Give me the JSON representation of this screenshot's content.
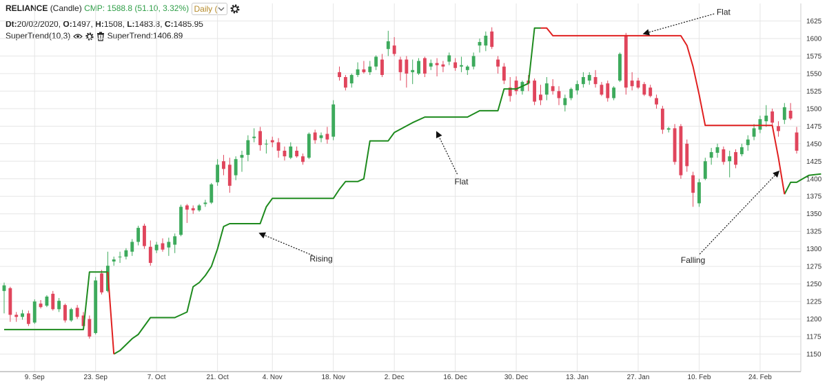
{
  "header": {
    "symbol": "RELIANCE",
    "chart_kind": "(Candle)",
    "cmp": "CMP: 1588.8 (51.10, 3.32%)",
    "interval": "Daily (",
    "dt_label": "Dt:",
    "dt_value": "20/02/2020,",
    "o_label": "O:",
    "o_value": "1497,",
    "h_label": "H:",
    "h_value": "1508,",
    "l_label": "L:",
    "l_value": "1483.8,",
    "c_label": "C:",
    "c_value": "1485.95",
    "indicator_name": "SuperTrend(10,3)",
    "indicator_value": "SuperTrend:1406.89"
  },
  "chart_data": {
    "type": "candlestick",
    "y_axis": {
      "min": 1125,
      "max": 1650,
      "ticks": [
        1150,
        1175,
        1200,
        1225,
        1250,
        1275,
        1300,
        1325,
        1350,
        1375,
        1400,
        1425,
        1450,
        1475,
        1500,
        1525,
        1550,
        1575,
        1600,
        1625
      ],
      "position": "right"
    },
    "x_ticks": [
      {
        "label": "9. Sep",
        "i": 5
      },
      {
        "label": "23. Sep",
        "i": 15
      },
      {
        "label": "7. Oct",
        "i": 25
      },
      {
        "label": "21. Oct",
        "i": 35
      },
      {
        "label": "4. Nov",
        "i": 44
      },
      {
        "label": "18. Nov",
        "i": 54
      },
      {
        "label": "2. Dec",
        "i": 64
      },
      {
        "label": "16. Dec",
        "i": 74
      },
      {
        "label": "30. Dec",
        "i": 84
      },
      {
        "label": "13. Jan",
        "i": 94
      },
      {
        "label": "27. Jan",
        "i": 104
      },
      {
        "label": "10. Feb",
        "i": 114
      },
      {
        "label": "24. Feb",
        "i": 124
      }
    ],
    "grid": true,
    "colors": {
      "up": "#3daa5c",
      "down": "#e0455c",
      "trend_up": "#1d8a1d",
      "trend_down": "#e01f1f"
    },
    "candles": [
      {
        "o": 1240,
        "h": 1252,
        "l": 1208,
        "c": 1248
      },
      {
        "o": 1244,
        "h": 1246,
        "l": 1196,
        "c": 1206
      },
      {
        "o": 1206,
        "h": 1210,
        "l": 1196,
        "c": 1203
      },
      {
        "o": 1203,
        "h": 1213,
        "l": 1199,
        "c": 1208
      },
      {
        "o": 1208,
        "h": 1212,
        "l": 1190,
        "c": 1193
      },
      {
        "o": 1195,
        "h": 1228,
        "l": 1193,
        "c": 1225
      },
      {
        "o": 1222,
        "h": 1227,
        "l": 1215,
        "c": 1217
      },
      {
        "o": 1219,
        "h": 1234,
        "l": 1217,
        "c": 1232
      },
      {
        "o": 1236,
        "h": 1240,
        "l": 1212,
        "c": 1214
      },
      {
        "o": 1214,
        "h": 1230,
        "l": 1210,
        "c": 1226
      },
      {
        "o": 1220,
        "h": 1222,
        "l": 1195,
        "c": 1198
      },
      {
        "o": 1198,
        "h": 1216,
        "l": 1196,
        "c": 1214
      },
      {
        "o": 1216,
        "h": 1220,
        "l": 1200,
        "c": 1203
      },
      {
        "o": 1205,
        "h": 1210,
        "l": 1188,
        "c": 1190
      },
      {
        "o": 1200,
        "h": 1205,
        "l": 1172,
        "c": 1175
      },
      {
        "o": 1180,
        "h": 1260,
        "l": 1178,
        "c": 1255
      },
      {
        "o": 1265,
        "h": 1270,
        "l": 1235,
        "c": 1238
      },
      {
        "o": 1240,
        "h": 1296,
        "l": 1238,
        "c": 1276
      },
      {
        "o": 1282,
        "h": 1289,
        "l": 1276,
        "c": 1285
      },
      {
        "o": 1288,
        "h": 1296,
        "l": 1280,
        "c": 1289
      },
      {
        "o": 1289,
        "h": 1301,
        "l": 1285,
        "c": 1298
      },
      {
        "o": 1296,
        "h": 1314,
        "l": 1290,
        "c": 1310
      },
      {
        "o": 1310,
        "h": 1333,
        "l": 1305,
        "c": 1330
      },
      {
        "o": 1333,
        "h": 1336,
        "l": 1300,
        "c": 1304
      },
      {
        "o": 1303,
        "h": 1312,
        "l": 1276,
        "c": 1280
      },
      {
        "o": 1298,
        "h": 1310,
        "l": 1294,
        "c": 1306
      },
      {
        "o": 1308,
        "h": 1315,
        "l": 1296,
        "c": 1299
      },
      {
        "o": 1302,
        "h": 1316,
        "l": 1290,
        "c": 1310
      },
      {
        "o": 1306,
        "h": 1322,
        "l": 1294,
        "c": 1318
      },
      {
        "o": 1320,
        "h": 1363,
        "l": 1318,
        "c": 1360
      },
      {
        "o": 1362,
        "h": 1364,
        "l": 1337,
        "c": 1356
      },
      {
        "o": 1358,
        "h": 1362,
        "l": 1350,
        "c": 1355
      },
      {
        "o": 1355,
        "h": 1364,
        "l": 1353,
        "c": 1362
      },
      {
        "o": 1364,
        "h": 1370,
        "l": 1360,
        "c": 1366
      },
      {
        "o": 1366,
        "h": 1394,
        "l": 1364,
        "c": 1392
      },
      {
        "o": 1395,
        "h": 1428,
        "l": 1390,
        "c": 1420
      },
      {
        "o": 1425,
        "h": 1434,
        "l": 1405,
        "c": 1414
      },
      {
        "o": 1420,
        "h": 1430,
        "l": 1380,
        "c": 1390
      },
      {
        "o": 1405,
        "h": 1432,
        "l": 1398,
        "c": 1428
      },
      {
        "o": 1430,
        "h": 1440,
        "l": 1410,
        "c": 1434
      },
      {
        "o": 1434,
        "h": 1462,
        "l": 1425,
        "c": 1455
      },
      {
        "o": 1458,
        "h": 1472,
        "l": 1452,
        "c": 1460
      },
      {
        "o": 1468,
        "h": 1474,
        "l": 1440,
        "c": 1448
      },
      {
        "o": 1450,
        "h": 1456,
        "l": 1436,
        "c": 1450
      },
      {
        "o": 1455,
        "h": 1460,
        "l": 1445,
        "c": 1452
      },
      {
        "o": 1452,
        "h": 1458,
        "l": 1430,
        "c": 1440
      },
      {
        "o": 1440,
        "h": 1446,
        "l": 1426,
        "c": 1432
      },
      {
        "o": 1430,
        "h": 1452,
        "l": 1428,
        "c": 1446
      },
      {
        "o": 1440,
        "h": 1446,
        "l": 1430,
        "c": 1432
      },
      {
        "o": 1432,
        "h": 1436,
        "l": 1420,
        "c": 1424
      },
      {
        "o": 1430,
        "h": 1466,
        "l": 1428,
        "c": 1464
      },
      {
        "o": 1466,
        "h": 1470,
        "l": 1450,
        "c": 1455
      },
      {
        "o": 1458,
        "h": 1466,
        "l": 1452,
        "c": 1462
      },
      {
        "o": 1464,
        "h": 1474,
        "l": 1450,
        "c": 1456
      },
      {
        "o": 1460,
        "h": 1512,
        "l": 1455,
        "c": 1506
      },
      {
        "o": 1552,
        "h": 1560,
        "l": 1540,
        "c": 1545
      },
      {
        "o": 1545,
        "h": 1548,
        "l": 1526,
        "c": 1530
      },
      {
        "o": 1536,
        "h": 1550,
        "l": 1530,
        "c": 1548
      },
      {
        "o": 1548,
        "h": 1566,
        "l": 1545,
        "c": 1556
      },
      {
        "o": 1556,
        "h": 1568,
        "l": 1550,
        "c": 1552
      },
      {
        "o": 1552,
        "h": 1568,
        "l": 1548,
        "c": 1560
      },
      {
        "o": 1560,
        "h": 1576,
        "l": 1555,
        "c": 1574
      },
      {
        "o": 1570,
        "h": 1578,
        "l": 1545,
        "c": 1548
      },
      {
        "o": 1585,
        "h": 1611,
        "l": 1575,
        "c": 1596
      },
      {
        "o": 1590,
        "h": 1602,
        "l": 1575,
        "c": 1578
      },
      {
        "o": 1570,
        "h": 1574,
        "l": 1540,
        "c": 1552
      },
      {
        "o": 1570,
        "h": 1575,
        "l": 1530,
        "c": 1550
      },
      {
        "o": 1552,
        "h": 1570,
        "l": 1535,
        "c": 1555
      },
      {
        "o": 1550,
        "h": 1572,
        "l": 1548,
        "c": 1568
      },
      {
        "o": 1572,
        "h": 1574,
        "l": 1545,
        "c": 1550
      },
      {
        "o": 1560,
        "h": 1570,
        "l": 1555,
        "c": 1565
      },
      {
        "o": 1565,
        "h": 1572,
        "l": 1546,
        "c": 1562
      },
      {
        "o": 1563,
        "h": 1568,
        "l": 1552,
        "c": 1560
      },
      {
        "o": 1567,
        "h": 1580,
        "l": 1562,
        "c": 1576
      },
      {
        "o": 1566,
        "h": 1572,
        "l": 1554,
        "c": 1558
      },
      {
        "o": 1560,
        "h": 1574,
        "l": 1552,
        "c": 1562
      },
      {
        "o": 1555,
        "h": 1562,
        "l": 1548,
        "c": 1560
      },
      {
        "o": 1560,
        "h": 1580,
        "l": 1556,
        "c": 1575
      },
      {
        "o": 1590,
        "h": 1600,
        "l": 1580,
        "c": 1595
      },
      {
        "o": 1590,
        "h": 1610,
        "l": 1582,
        "c": 1604
      },
      {
        "o": 1610,
        "h": 1616,
        "l": 1585,
        "c": 1588
      },
      {
        "o": 1570,
        "h": 1575,
        "l": 1550,
        "c": 1560
      },
      {
        "o": 1560,
        "h": 1565,
        "l": 1535,
        "c": 1540
      },
      {
        "o": 1530,
        "h": 1545,
        "l": 1510,
        "c": 1518
      },
      {
        "o": 1540,
        "h": 1546,
        "l": 1520,
        "c": 1525
      },
      {
        "o": 1525,
        "h": 1540,
        "l": 1520,
        "c": 1538
      },
      {
        "o": 1540,
        "h": 1548,
        "l": 1525,
        "c": 1536
      },
      {
        "o": 1540,
        "h": 1543,
        "l": 1505,
        "c": 1510
      },
      {
        "o": 1520,
        "h": 1534,
        "l": 1505,
        "c": 1512
      },
      {
        "o": 1520,
        "h": 1545,
        "l": 1512,
        "c": 1536
      },
      {
        "o": 1532,
        "h": 1542,
        "l": 1520,
        "c": 1525
      },
      {
        "o": 1525,
        "h": 1532,
        "l": 1505,
        "c": 1515
      },
      {
        "o": 1505,
        "h": 1520,
        "l": 1496,
        "c": 1515
      },
      {
        "o": 1515,
        "h": 1530,
        "l": 1512,
        "c": 1528
      },
      {
        "o": 1526,
        "h": 1540,
        "l": 1520,
        "c": 1535
      },
      {
        "o": 1535,
        "h": 1552,
        "l": 1530,
        "c": 1545
      },
      {
        "o": 1540,
        "h": 1552,
        "l": 1534,
        "c": 1548
      },
      {
        "o": 1545,
        "h": 1555,
        "l": 1530,
        "c": 1535
      },
      {
        "o": 1534,
        "h": 1538,
        "l": 1518,
        "c": 1520
      },
      {
        "o": 1536,
        "h": 1540,
        "l": 1510,
        "c": 1515
      },
      {
        "o": 1515,
        "h": 1532,
        "l": 1512,
        "c": 1530
      },
      {
        "o": 1540,
        "h": 1580,
        "l": 1538,
        "c": 1578
      },
      {
        "o": 1605,
        "h": 1608,
        "l": 1520,
        "c": 1530
      },
      {
        "o": 1540,
        "h": 1552,
        "l": 1526,
        "c": 1532
      },
      {
        "o": 1540,
        "h": 1544,
        "l": 1528,
        "c": 1530
      },
      {
        "o": 1535,
        "h": 1538,
        "l": 1518,
        "c": 1520
      },
      {
        "o": 1530,
        "h": 1534,
        "l": 1516,
        "c": 1518
      },
      {
        "o": 1515,
        "h": 1520,
        "l": 1500,
        "c": 1506
      },
      {
        "o": 1500,
        "h": 1504,
        "l": 1464,
        "c": 1470
      },
      {
        "o": 1470,
        "h": 1474,
        "l": 1466,
        "c": 1472
      },
      {
        "o": 1472,
        "h": 1478,
        "l": 1420,
        "c": 1424
      },
      {
        "o": 1475,
        "h": 1478,
        "l": 1400,
        "c": 1405
      },
      {
        "o": 1450,
        "h": 1456,
        "l": 1410,
        "c": 1418
      },
      {
        "o": 1405,
        "h": 1410,
        "l": 1360,
        "c": 1380
      },
      {
        "o": 1365,
        "h": 1400,
        "l": 1360,
        "c": 1395
      },
      {
        "o": 1400,
        "h": 1430,
        "l": 1398,
        "c": 1425
      },
      {
        "o": 1430,
        "h": 1444,
        "l": 1420,
        "c": 1438
      },
      {
        "o": 1437,
        "h": 1450,
        "l": 1430,
        "c": 1445
      },
      {
        "o": 1442,
        "h": 1446,
        "l": 1420,
        "c": 1424
      },
      {
        "o": 1425,
        "h": 1440,
        "l": 1402,
        "c": 1432
      },
      {
        "o": 1438,
        "h": 1442,
        "l": 1415,
        "c": 1420
      },
      {
        "o": 1435,
        "h": 1450,
        "l": 1432,
        "c": 1445
      },
      {
        "o": 1448,
        "h": 1462,
        "l": 1440,
        "c": 1456
      },
      {
        "o": 1460,
        "h": 1478,
        "l": 1455,
        "c": 1472
      },
      {
        "o": 1470,
        "h": 1490,
        "l": 1465,
        "c": 1485
      },
      {
        "o": 1482,
        "h": 1505,
        "l": 1474,
        "c": 1490
      },
      {
        "o": 1496,
        "h": 1500,
        "l": 1476,
        "c": 1480
      },
      {
        "o": 1475,
        "h": 1482,
        "l": 1460,
        "c": 1468
      },
      {
        "o": 1484,
        "h": 1508,
        "l": 1478,
        "c": 1502
      },
      {
        "o": 1497,
        "h": 1508,
        "l": 1483.8,
        "c": 1485.95
      },
      {
        "o": 1466,
        "h": 1474,
        "l": 1436,
        "c": 1440
      }
    ],
    "supertrend_up_segments": [
      [
        [
          0,
          1185
        ],
        [
          13,
          1185
        ],
        [
          14,
          1267
        ],
        [
          17,
          1267
        ]
      ],
      [
        [
          18,
          1150
        ],
        [
          19,
          1155
        ],
        [
          21,
          1172
        ],
        [
          22,
          1178
        ],
        [
          24,
          1202
        ],
        [
          28,
          1202
        ],
        [
          29,
          1206
        ],
        [
          30,
          1210
        ],
        [
          31,
          1246
        ],
        [
          32,
          1252
        ],
        [
          33,
          1262
        ],
        [
          34,
          1275
        ],
        [
          35,
          1300
        ],
        [
          36,
          1332
        ],
        [
          37,
          1336
        ],
        [
          42,
          1336
        ],
        [
          43,
          1360
        ],
        [
          44,
          1372
        ],
        [
          54,
          1372
        ],
        [
          55,
          1385
        ],
        [
          56,
          1396
        ],
        [
          58,
          1396
        ],
        [
          59,
          1400
        ],
        [
          60,
          1454
        ],
        [
          63,
          1454
        ],
        [
          64,
          1466
        ],
        [
          67,
          1480
        ],
        [
          69,
          1488
        ],
        [
          76,
          1488
        ],
        [
          78,
          1497
        ],
        [
          81,
          1497
        ],
        [
          82,
          1528
        ],
        [
          84,
          1528
        ],
        [
          86,
          1536
        ],
        [
          87,
          1615
        ],
        [
          88,
          1615
        ]
      ],
      [
        [
          128,
          1378
        ],
        [
          129,
          1395
        ],
        [
          130,
          1395
        ],
        [
          131,
          1400
        ],
        [
          132,
          1405
        ],
        [
          134,
          1406.89
        ]
      ]
    ],
    "supertrend_down_segments": [
      [
        [
          17,
          1267
        ],
        [
          18,
          1150
        ]
      ],
      [
        [
          88,
          1615
        ],
        [
          89,
          1615
        ],
        [
          90,
          1604
        ],
        [
          111,
          1604
        ],
        [
          112,
          1590
        ],
        [
          113,
          1560
        ],
        [
          114,
          1520
        ],
        [
          115,
          1476
        ],
        [
          126,
          1476
        ],
        [
          127,
          1430
        ],
        [
          128,
          1378
        ]
      ]
    ],
    "annotations": [
      {
        "label": "Rising",
        "text_at": [
          52,
          1282
        ],
        "arrow_to": [
          42,
          1322
        ]
      },
      {
        "label": "Flat",
        "text_at": [
          75,
          1392
        ],
        "arrow_to": [
          71,
          1466
        ]
      },
      {
        "label": "Flat",
        "text_at": [
          118,
          1634
        ],
        "arrow_to": [
          105,
          1607
        ]
      },
      {
        "label": "Falling",
        "text_at": [
          113,
          1280
        ],
        "arrow_to": [
          127,
          1410
        ]
      }
    ]
  }
}
